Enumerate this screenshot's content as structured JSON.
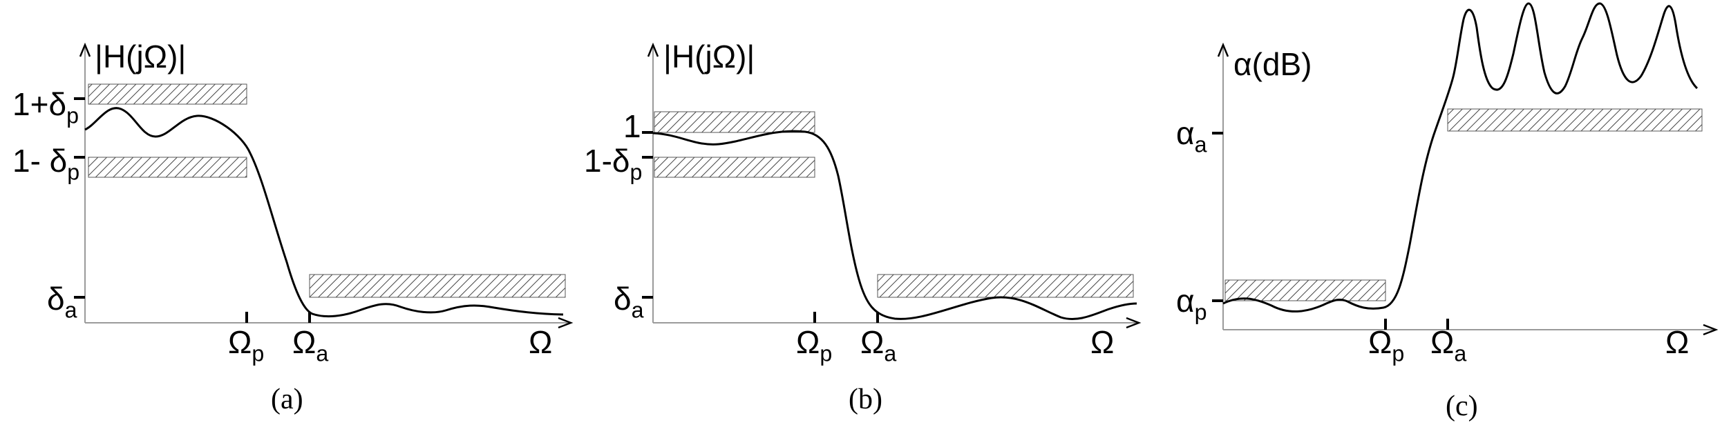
{
  "panels": [
    {
      "id": "a",
      "caption": "(a)",
      "y_axis_title": {
        "prefix": "|H(j",
        "omega": "Ω",
        "suffix": ")|"
      },
      "y_labels": {
        "upper_pass": {
          "main": "1+δ",
          "sub": "p"
        },
        "lower_pass": {
          "main": "1- δ",
          "sub": "p"
        },
        "stop": {
          "main": "δ",
          "sub": "a"
        }
      },
      "x_labels": {
        "passband_edge": {
          "main": "Ω",
          "sub": "p"
        },
        "stopband_edge": {
          "main": "Ω",
          "sub": "a"
        },
        "axis": "Ω"
      }
    },
    {
      "id": "b",
      "caption": "(b)",
      "y_axis_title": {
        "prefix": "|H(j",
        "omega": "Ω",
        "suffix": ")|"
      },
      "y_labels": {
        "upper_pass": {
          "main": "1",
          "sub": ""
        },
        "lower_pass": {
          "main": "1-δ",
          "sub": "p"
        },
        "stop": {
          "main": "δ",
          "sub": "a"
        }
      },
      "x_labels": {
        "passband_edge": {
          "main": "Ω",
          "sub": "p"
        },
        "stopband_edge": {
          "main": "Ω",
          "sub": "a"
        },
        "axis": "Ω"
      }
    },
    {
      "id": "c",
      "caption": "(c)",
      "y_axis_title": {
        "text": "α(dB)"
      },
      "y_labels": {
        "stop": {
          "main": "α",
          "sub": "a"
        },
        "pass": {
          "main": "α",
          "sub": "p"
        }
      },
      "x_labels": {
        "passband_edge": {
          "main": "Ω",
          "sub": "p"
        },
        "stopband_edge": {
          "main": "Ω",
          "sub": "a"
        },
        "axis": "Ω"
      }
    }
  ]
}
